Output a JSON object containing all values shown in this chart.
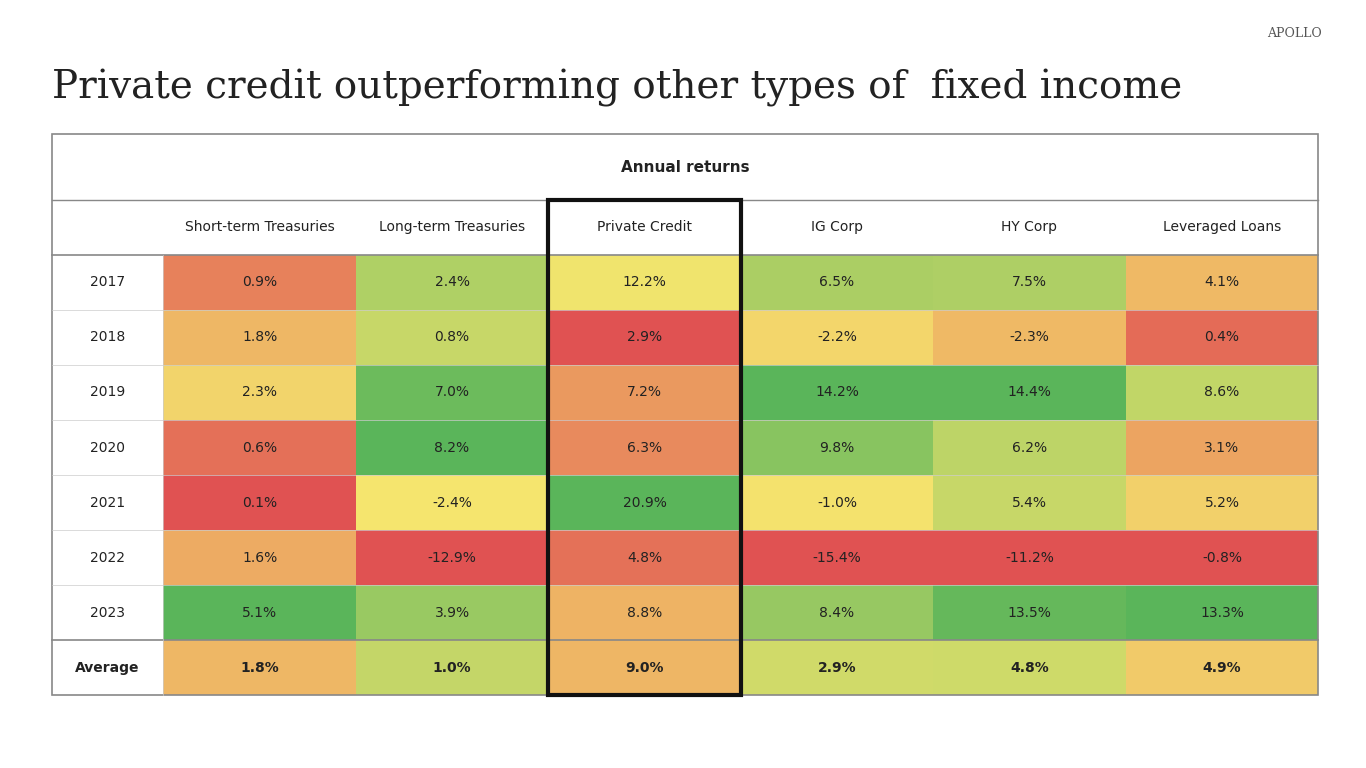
{
  "title": "Private credit outperforming other types of  fixed income",
  "subtitle": "Annual returns",
  "apollo_label": "APOLLO",
  "columns": [
    "Short-term Treasuries",
    "Long-term Treasuries",
    "Private Credit",
    "IG Corp",
    "HY Corp",
    "Leveraged Loans"
  ],
  "rows": [
    "2017",
    "2018",
    "2019",
    "2020",
    "2021",
    "2022",
    "2023",
    "Average"
  ],
  "values": [
    [
      0.9,
      2.4,
      12.2,
      6.5,
      7.5,
      4.1
    ],
    [
      1.8,
      0.8,
      2.9,
      -2.2,
      -2.3,
      0.4
    ],
    [
      2.3,
      7.0,
      7.2,
      14.2,
      14.4,
      8.6
    ],
    [
      0.6,
      8.2,
      6.3,
      9.8,
      6.2,
      3.1
    ],
    [
      0.1,
      -2.4,
      20.9,
      -1.0,
      5.4,
      5.2
    ],
    [
      1.6,
      -12.9,
      4.8,
      -15.4,
      -11.2,
      -0.8
    ],
    [
      5.1,
      3.9,
      8.8,
      8.4,
      13.5,
      13.3
    ],
    [
      1.8,
      1.0,
      9.0,
      2.9,
      4.8,
      4.9
    ]
  ],
  "labels": [
    [
      "0.9%",
      "2.4%",
      "12.2%",
      "6.5%",
      "7.5%",
      "4.1%"
    ],
    [
      "1.8%",
      "0.8%",
      "2.9%",
      "-2.2%",
      "-2.3%",
      "0.4%"
    ],
    [
      "2.3%",
      "7.0%",
      "7.2%",
      "14.2%",
      "14.4%",
      "8.6%"
    ],
    [
      "0.6%",
      "8.2%",
      "6.3%",
      "9.8%",
      "6.2%",
      "3.1%"
    ],
    [
      "0.1%",
      "-2.4%",
      "20.9%",
      "-1.0%",
      "5.4%",
      "5.2%"
    ],
    [
      "1.6%",
      "-12.9%",
      "4.8%",
      "-15.4%",
      "-11.2%",
      "-0.8%"
    ],
    [
      "5.1%",
      "3.9%",
      "8.8%",
      "8.4%",
      "13.5%",
      "13.3%"
    ],
    [
      "1.8%",
      "1.0%",
      "9.0%",
      "2.9%",
      "4.8%",
      "4.9%"
    ]
  ],
  "highlight_col": 2,
  "background_color": "#ffffff",
  "table_border_color": "#888888",
  "color_low": "#e05252",
  "color_mid": "#f5e66e",
  "color_high": "#5ab55a",
  "title_fontsize": 28,
  "subtitle_fontsize": 11,
  "header_fontsize": 10,
  "cell_fontsize": 10,
  "row_label_fontsize": 10
}
